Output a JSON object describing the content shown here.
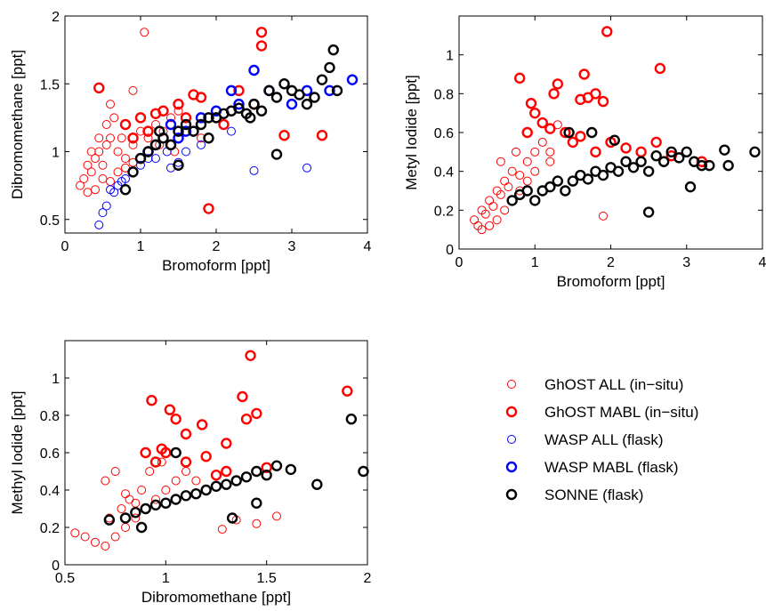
{
  "colors": {
    "ghost_all": "#ff0000",
    "ghost_mabl": "#ff0000",
    "wasp_all": "#0000ff",
    "wasp_mabl": "#0000ff",
    "sonne": "#000000"
  },
  "legend": {
    "placement": "bottom-right",
    "entries": [
      {
        "key": "ghost_all",
        "label": "GhOST ALL (in−situ)",
        "style": "thin"
      },
      {
        "key": "ghost_mabl",
        "label": "GhOST MABL (in−situ)",
        "style": "thick"
      },
      {
        "key": "wasp_all",
        "label": "WASP ALL (flask)",
        "style": "thin"
      },
      {
        "key": "wasp_mabl",
        "label": "WASP MABL (flask)",
        "style": "thick"
      },
      {
        "key": "sonne",
        "label": "SONNE (flask)",
        "style": "thick"
      }
    ]
  },
  "chart_data": [
    {
      "type": "scatter",
      "xlabel": "Bromoform [ppt]",
      "ylabel": "Dibromomethane [ppt]",
      "xlim": [
        0,
        4
      ],
      "ylim": [
        0.4,
        2
      ],
      "xticks": [
        "0",
        "1",
        "2",
        "3",
        "4"
      ],
      "xtick_values": [
        0,
        1,
        2,
        3,
        4
      ],
      "yticks": [
        "0.5",
        "1",
        "1.5",
        "2"
      ],
      "ytick_values": [
        0.5,
        1,
        1.5,
        2
      ],
      "series": [
        {
          "key": "ghost_all",
          "name": "GhOST ALL (in−situ)",
          "x": [
            0.2,
            0.25,
            0.3,
            0.35,
            0.4,
            0.45,
            0.5,
            0.55,
            0.6,
            0.7,
            0.75,
            0.8,
            0.9,
            1.0,
            1.1,
            1.2,
            1.3,
            1.4,
            1.5,
            1.6,
            0.3,
            0.4,
            0.5,
            0.6,
            0.7,
            0.8,
            0.9,
            1.0,
            0.55,
            0.65,
            1.05,
            0.9,
            1.7,
            1.8,
            2.0,
            0.35,
            0.45,
            0.6,
            1.25,
            1.45
          ],
          "y": [
            0.75,
            0.8,
            0.9,
            0.85,
            0.95,
            1.0,
            0.9,
            1.05,
            1.1,
            1.0,
            1.1,
            0.95,
            1.05,
            1.15,
            1.1,
            1.2,
            1.15,
            1.25,
            1.3,
            1.2,
            0.7,
            0.72,
            0.8,
            0.78,
            0.85,
            0.88,
            0.92,
            0.95,
            1.2,
            1.25,
            1.88,
            1.45,
            1.15,
            1.1,
            1.25,
            1.0,
            1.1,
            1.35,
            1.05,
            1.0
          ]
        },
        {
          "key": "ghost_mabl",
          "name": "GhOST MABL (in−situ)",
          "x": [
            2.6,
            2.6,
            0.45,
            0.8,
            1.0,
            1.2,
            1.3,
            1.5,
            1.7,
            1.8,
            1.9,
            2.1,
            2.3,
            2.5,
            2.9,
            3.4,
            0.9,
            1.1,
            1.4,
            1.6
          ],
          "y": [
            1.88,
            1.78,
            1.47,
            1.2,
            1.25,
            1.28,
            1.3,
            1.35,
            1.42,
            1.4,
            0.58,
            1.2,
            1.45,
            1.35,
            1.12,
            1.12,
            1.1,
            1.15,
            1.05,
            1.25
          ]
        },
        {
          "key": "wasp_all",
          "name": "WASP ALL (flask)",
          "x": [
            0.45,
            0.5,
            0.55,
            0.6,
            0.7,
            0.8,
            0.9,
            1.0,
            1.2,
            1.35,
            1.5,
            1.8,
            2.2,
            2.5,
            3.2,
            0.65,
            0.75,
            1.1,
            1.4,
            1.6
          ],
          "y": [
            0.46,
            0.55,
            0.6,
            0.72,
            0.75,
            0.8,
            0.85,
            0.9,
            0.95,
            1.0,
            0.92,
            1.05,
            1.15,
            0.86,
            0.88,
            0.7,
            0.78,
            0.95,
            0.88,
            1.0
          ]
        },
        {
          "key": "wasp_mabl",
          "name": "WASP MABL (flask)",
          "x": [
            1.2,
            1.4,
            1.6,
            1.8,
            2.0,
            2.2,
            2.3,
            2.5,
            2.7,
            3.0,
            3.2,
            3.5,
            3.8,
            1.1,
            1.5
          ],
          "y": [
            1.05,
            1.2,
            1.15,
            1.25,
            1.3,
            1.45,
            1.35,
            1.6,
            1.45,
            1.35,
            1.45,
            1.45,
            1.53,
            1.0,
            1.1
          ]
        },
        {
          "key": "sonne",
          "name": "SONNE (flask)",
          "x": [
            0.8,
            0.9,
            1.0,
            1.1,
            1.2,
            1.3,
            1.4,
            1.5,
            1.6,
            1.7,
            1.8,
            1.9,
            2.0,
            2.1,
            2.2,
            2.3,
            2.4,
            2.5,
            2.6,
            2.7,
            2.8,
            2.9,
            3.0,
            3.1,
            3.2,
            3.3,
            3.4,
            3.5,
            3.55,
            3.6,
            2.8,
            1.5,
            1.25,
            1.9,
            2.45
          ],
          "y": [
            0.72,
            0.85,
            0.95,
            1.0,
            1.05,
            1.1,
            1.05,
            1.15,
            1.2,
            1.15,
            1.2,
            1.25,
            1.25,
            1.28,
            1.3,
            1.32,
            1.28,
            1.35,
            1.3,
            1.45,
            1.4,
            1.5,
            1.45,
            1.42,
            1.35,
            1.4,
            1.53,
            1.62,
            1.75,
            1.45,
            0.98,
            0.9,
            1.15,
            1.1,
            1.25
          ]
        }
      ]
    },
    {
      "type": "scatter",
      "xlabel": "Bromoform [ppt]",
      "ylabel": "Metyl Iodide [ppt]",
      "xlim": [
        0,
        4
      ],
      "ylim": [
        0,
        1.2
      ],
      "xticks": [
        "0",
        "1",
        "2",
        "3",
        "4"
      ],
      "xtick_values": [
        0,
        1,
        2,
        3,
        4
      ],
      "yticks": [
        "0",
        "0.2",
        "0.4",
        "0.6",
        "0.8",
        "1"
      ],
      "ytick_values": [
        0,
        0.2,
        0.4,
        0.6,
        0.8,
        1
      ],
      "series": [
        {
          "key": "ghost_all",
          "name": "GhOST ALL (in−situ)",
          "x": [
            0.2,
            0.25,
            0.3,
            0.35,
            0.4,
            0.45,
            0.5,
            0.55,
            0.6,
            0.65,
            0.7,
            0.8,
            0.9,
            1.0,
            1.1,
            1.2,
            0.3,
            0.4,
            0.5,
            0.6,
            0.7,
            0.8,
            0.9,
            1.0,
            1.3,
            1.4,
            1.2,
            1.9,
            0.55,
            0.75
          ],
          "y": [
            0.15,
            0.12,
            0.2,
            0.18,
            0.25,
            0.22,
            0.3,
            0.28,
            0.35,
            0.32,
            0.4,
            0.38,
            0.45,
            0.5,
            0.55,
            0.5,
            0.1,
            0.12,
            0.15,
            0.2,
            0.25,
            0.3,
            0.35,
            0.4,
            0.64,
            0.6,
            0.45,
            0.17,
            0.45,
            0.5
          ]
        },
        {
          "key": "ghost_mabl",
          "name": "GhOST MABL (in−situ)",
          "x": [
            1.95,
            2.65,
            1.65,
            1.7,
            1.8,
            1.9,
            1.6,
            0.8,
            1.25,
            0.95,
            1.0,
            1.1,
            1.2,
            1.4,
            1.5,
            1.6,
            1.8,
            2.0,
            2.2,
            2.4,
            2.6,
            2.8,
            3.2,
            1.3,
            0.9
          ],
          "y": [
            1.12,
            0.93,
            0.9,
            0.78,
            0.8,
            0.76,
            0.77,
            0.88,
            0.8,
            0.75,
            0.7,
            0.65,
            0.62,
            0.6,
            0.55,
            0.58,
            0.5,
            0.55,
            0.52,
            0.5,
            0.55,
            0.48,
            0.45,
            0.85,
            0.6
          ]
        },
        {
          "key": "sonne",
          "name": "SONNE (flask)",
          "x": [
            0.7,
            0.8,
            0.9,
            1.0,
            1.1,
            1.2,
            1.3,
            1.4,
            1.5,
            1.6,
            1.7,
            1.8,
            1.9,
            2.0,
            2.1,
            2.2,
            2.3,
            2.4,
            2.5,
            2.6,
            2.7,
            2.8,
            2.9,
            3.0,
            3.1,
            3.2,
            3.3,
            3.5,
            3.55,
            3.9,
            2.5,
            3.05,
            1.45,
            1.75,
            2.05
          ],
          "y": [
            0.25,
            0.28,
            0.3,
            0.25,
            0.3,
            0.32,
            0.35,
            0.3,
            0.35,
            0.38,
            0.36,
            0.4,
            0.38,
            0.42,
            0.4,
            0.45,
            0.42,
            0.45,
            0.4,
            0.48,
            0.45,
            0.5,
            0.47,
            0.5,
            0.45,
            0.43,
            0.43,
            0.51,
            0.43,
            0.5,
            0.19,
            0.32,
            0.6,
            0.6,
            0.56
          ]
        }
      ]
    },
    {
      "type": "scatter",
      "xlabel": "Dibromomethane [ppt]",
      "ylabel": "Methyl Iodide [ppt]",
      "xlim": [
        0.5,
        2
      ],
      "ylim": [
        0,
        1.2
      ],
      "xticks": [
        "0.5",
        "1",
        "1.5",
        "2"
      ],
      "xtick_values": [
        0.5,
        1,
        1.5,
        2
      ],
      "yticks": [
        "0",
        "0.2",
        "0.4",
        "0.6",
        "0.8",
        "1"
      ],
      "ytick_values": [
        0,
        0.2,
        0.4,
        0.6,
        0.8,
        1
      ],
      "series": [
        {
          "key": "ghost_all",
          "name": "GhOST ALL (in−situ)",
          "x": [
            0.55,
            0.6,
            0.65,
            0.7,
            0.75,
            0.8,
            0.85,
            0.9,
            0.95,
            1.0,
            1.05,
            1.1,
            1.15,
            1.2,
            0.72,
            0.78,
            0.82,
            0.88,
            0.92,
            0.98,
            1.28,
            1.35,
            1.45,
            1.55,
            0.7,
            0.75,
            0.8,
            0.85
          ],
          "y": [
            0.17,
            0.15,
            0.12,
            0.1,
            0.15,
            0.2,
            0.25,
            0.3,
            0.35,
            0.4,
            0.45,
            0.5,
            0.45,
            0.4,
            0.25,
            0.3,
            0.35,
            0.4,
            0.5,
            0.55,
            0.19,
            0.24,
            0.22,
            0.26,
            0.45,
            0.5,
            0.38,
            0.33
          ]
        },
        {
          "key": "ghost_mabl",
          "name": "GhOST MABL (in−situ)",
          "x": [
            1.42,
            1.9,
            0.93,
            1.02,
            1.05,
            1.1,
            1.18,
            1.3,
            1.38,
            1.4,
            1.45,
            0.9,
            0.95,
            1.0,
            1.1,
            1.2,
            1.3,
            1.5,
            0.98,
            1.25
          ],
          "y": [
            1.12,
            0.93,
            0.88,
            0.83,
            0.78,
            0.7,
            0.75,
            0.65,
            0.9,
            0.78,
            0.81,
            0.6,
            0.55,
            0.6,
            0.55,
            0.58,
            0.5,
            0.52,
            0.62,
            0.48
          ]
        },
        {
          "key": "sonne",
          "name": "SONNE (flask)",
          "x": [
            0.72,
            0.8,
            0.85,
            0.9,
            0.95,
            1.0,
            1.05,
            1.1,
            1.15,
            1.2,
            1.25,
            1.3,
            1.35,
            1.4,
            1.45,
            1.5,
            1.55,
            1.62,
            1.75,
            1.92,
            1.98,
            0.88,
            1.05,
            1.33,
            1.45
          ],
          "y": [
            0.24,
            0.25,
            0.28,
            0.3,
            0.32,
            0.33,
            0.35,
            0.37,
            0.38,
            0.4,
            0.42,
            0.43,
            0.45,
            0.47,
            0.5,
            0.48,
            0.53,
            0.51,
            0.43,
            0.78,
            0.5,
            0.2,
            0.6,
            0.25,
            0.33
          ]
        }
      ]
    }
  ]
}
